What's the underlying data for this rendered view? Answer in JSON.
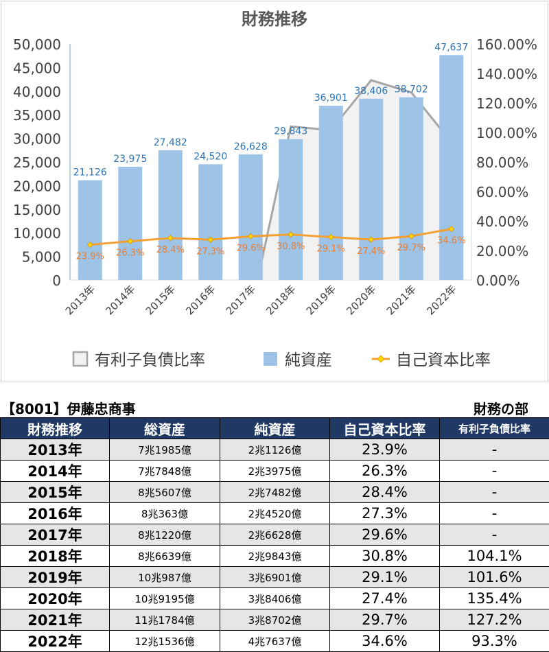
{
  "chart_data": {
    "type": "bar",
    "title": "財務推移",
    "categories": [
      "2013年",
      "2014年",
      "2015年",
      "2016年",
      "2017年",
      "2018年",
      "2019年",
      "2020年",
      "2021年",
      "2022年"
    ],
    "left_axis": {
      "ylim": [
        0,
        50000
      ],
      "ticks": [
        "0",
        "5,000",
        "10,000",
        "15,000",
        "20,000",
        "25,000",
        "30,000",
        "35,000",
        "40,000",
        "45,000",
        "50,000"
      ]
    },
    "right_axis": {
      "ylim": [
        0,
        160
      ],
      "ticks": [
        "0.00%",
        "20.00%",
        "40.00%",
        "60.00%",
        "80.00%",
        "100.00%",
        "120.00%",
        "140.00%",
        "160.00%"
      ]
    },
    "series": [
      {
        "name": "有利子負債比率",
        "kind": "area",
        "axis": "right",
        "color": "#a6a6a6",
        "values": [
          null,
          null,
          null,
          null,
          null,
          104.1,
          101.6,
          135.4,
          127.2,
          93.3
        ]
      },
      {
        "name": "純資産",
        "kind": "bar",
        "axis": "left",
        "color": "#9dc3e6",
        "values": [
          21126,
          23975,
          27482,
          24520,
          26628,
          29843,
          36901,
          38406,
          38702,
          47637
        ],
        "labels": [
          "21,126",
          "23,975",
          "27,482",
          "24,520",
          "26,628",
          "29,843",
          "36,901",
          "38,406",
          "38,702",
          "47,637"
        ]
      },
      {
        "name": "自己資本比率",
        "kind": "line",
        "axis": "right",
        "color": "#f4a030",
        "values": [
          23.9,
          26.3,
          28.4,
          27.3,
          29.6,
          30.8,
          29.1,
          27.4,
          29.7,
          34.6
        ],
        "labels": [
          "23.9%",
          "26.3%",
          "28.4%",
          "27.3%",
          "29.6%",
          "30.8%",
          "29.1%",
          "27.4%",
          "29.7%",
          "34.6%"
        ]
      }
    ],
    "legend_placement": "bottom",
    "grid": false
  },
  "company_title": "【8001】伊藤忠商事",
  "section_label": "財務の部",
  "table": {
    "headers": [
      "財務推移",
      "総資産",
      "純資産",
      "自己資本比率",
      "有利子負債比率"
    ],
    "rows": [
      [
        "2013年",
        "7兆1985億",
        "2兆1126億",
        "23.9%",
        "-"
      ],
      [
        "2014年",
        "7兆7848億",
        "2兆3975億",
        "26.3%",
        "-"
      ],
      [
        "2015年",
        "8兆5607億",
        "2兆7482億",
        "28.4%",
        "-"
      ],
      [
        "2016年",
        "8兆363億",
        "2兆4520億",
        "27.3%",
        "-"
      ],
      [
        "2017年",
        "8兆1220億",
        "2兆6628億",
        "29.6%",
        "-"
      ],
      [
        "2018年",
        "8兆6639億",
        "2兆9843億",
        "30.8%",
        "104.1%"
      ],
      [
        "2019年",
        "10兆987億",
        "3兆6901億",
        "29.1%",
        "101.6%"
      ],
      [
        "2020年",
        "10兆9195億",
        "3兆8406億",
        "27.4%",
        "135.4%"
      ],
      [
        "2021年",
        "11兆1784億",
        "3兆8702億",
        "29.7%",
        "127.2%"
      ],
      [
        "2022年",
        "12兆1536億",
        "4兆7637億",
        "34.6%",
        "93.3%"
      ]
    ]
  }
}
